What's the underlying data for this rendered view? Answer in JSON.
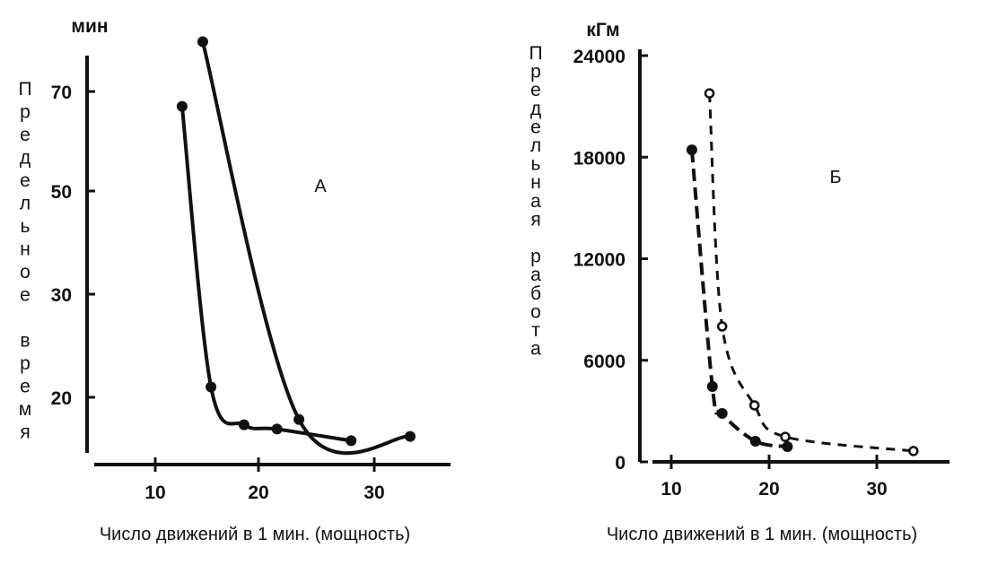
{
  "chart_data": [
    {
      "type": "line",
      "panel": "А",
      "unit": "мин",
      "ylabel": "Предельное время",
      "xlabel": "Число движений в 1 мин. (мощность)",
      "xticks": [
        10,
        20,
        30
      ],
      "yticks": [
        70,
        50,
        30,
        20
      ],
      "y_scale": "non-linear (ticks 70, 50, 30, 20 equally spaced)",
      "series": [
        {
          "name": "curve-1",
          "style": "solid",
          "marker": "filled",
          "x": [
            12.6,
            15.4,
            18.6,
            21.6,
            28.0
          ],
          "y": [
            67,
            21,
            17.4,
            17,
            15.9
          ]
        },
        {
          "name": "curve-2",
          "style": "solid",
          "marker": "filled",
          "x": [
            14.6,
            23.5,
            33.1
          ],
          "y": [
            75,
            17.9,
            16.3
          ]
        }
      ]
    },
    {
      "type": "line",
      "panel": "Б",
      "unit": "кГм",
      "ylabel": "Предельная работа",
      "xlabel": "Число движений в 1 мин. (мощность)",
      "xticks": [
        10,
        20,
        30
      ],
      "yticks": [
        0,
        6000,
        12000,
        18000,
        24000
      ],
      "ylim": [
        0,
        24000
      ],
      "series": [
        {
          "name": "filled-points",
          "style": "dashed",
          "marker": "filled",
          "x": [
            12.1,
            14.2,
            15.2,
            18.6,
            21.7
          ],
          "y": [
            18430,
            4450,
            2860,
            1220,
            900
          ]
        },
        {
          "name": "open-points",
          "style": "dashed",
          "marker": "open",
          "x": [
            13.9,
            15.2,
            18.5,
            21.5,
            33.4
          ],
          "y": [
            21770,
            8000,
            3340,
            1480,
            640
          ]
        }
      ]
    }
  ]
}
